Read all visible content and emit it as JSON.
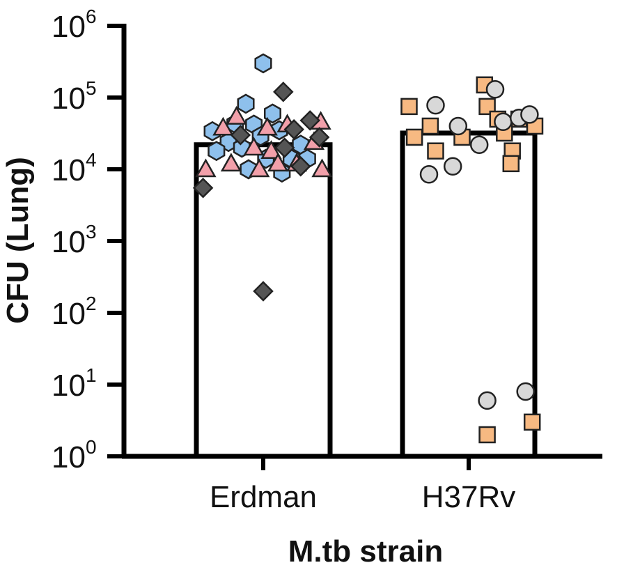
{
  "chart_data": {
    "type": "scatter",
    "title": "",
    "xlabel": "M.tb strain",
    "ylabel": "CFU (Lung)",
    "yscale": "log",
    "ylim": [
      1,
      1000000
    ],
    "y_ticks": [
      {
        "value": 1,
        "base": "10",
        "exp": "0"
      },
      {
        "value": 10,
        "base": "10",
        "exp": "1"
      },
      {
        "value": 100,
        "base": "10",
        "exp": "2"
      },
      {
        "value": 1000,
        "base": "10",
        "exp": "3"
      },
      {
        "value": 10000,
        "base": "10",
        "exp": "4"
      },
      {
        "value": 100000,
        "base": "10",
        "exp": "5"
      },
      {
        "value": 1000000,
        "base": "10",
        "exp": "6"
      }
    ],
    "categories": [
      "Erdman",
      "H37Rv"
    ],
    "bars": [
      {
        "category": "Erdman",
        "value": 22000
      },
      {
        "category": "H37Rv",
        "value": 32000
      }
    ],
    "grid": false,
    "legend": "none",
    "series": [
      {
        "category": "Erdman",
        "marker": "hexagon",
        "color": "#8ec0ec",
        "points": [
          {
            "x": 0.5,
            "y": 300000
          },
          {
            "x": 0.37,
            "y": 82000
          },
          {
            "x": 0.57,
            "y": 60000
          },
          {
            "x": 0.12,
            "y": 34000
          },
          {
            "x": 0.29,
            "y": 43000
          },
          {
            "x": 0.43,
            "y": 42000
          },
          {
            "x": 0.62,
            "y": 35000
          },
          {
            "x": 0.24,
            "y": 24000
          },
          {
            "x": 0.48,
            "y": 29000
          },
          {
            "x": 0.15,
            "y": 18000
          },
          {
            "x": 0.34,
            "y": 20000
          },
          {
            "x": 0.78,
            "y": 22000
          },
          {
            "x": 0.52,
            "y": 14000
          },
          {
            "x": 0.71,
            "y": 14000
          },
          {
            "x": 0.83,
            "y": 14000
          },
          {
            "x": 0.39,
            "y": 10000
          },
          {
            "x": 0.64,
            "y": 9000
          }
        ]
      },
      {
        "category": "Erdman",
        "marker": "triangle",
        "color": "#f2a0aa",
        "points": [
          {
            "x": 0.3,
            "y": 54000
          },
          {
            "x": 0.93,
            "y": 46000
          },
          {
            "x": 0.2,
            "y": 38000
          },
          {
            "x": 0.53,
            "y": 38000
          },
          {
            "x": 0.68,
            "y": 42000
          },
          {
            "x": 0.88,
            "y": 24000
          },
          {
            "x": 0.43,
            "y": 20000
          },
          {
            "x": 0.56,
            "y": 18000
          },
          {
            "x": 0.07,
            "y": 10000
          },
          {
            "x": 0.26,
            "y": 12000
          },
          {
            "x": 0.47,
            "y": 10000
          },
          {
            "x": 0.61,
            "y": 12000
          },
          {
            "x": 0.75,
            "y": 12000
          },
          {
            "x": 0.94,
            "y": 10000
          }
        ]
      },
      {
        "category": "Erdman",
        "marker": "diamond",
        "color": "#555555",
        "points": [
          {
            "x": 0.65,
            "y": 120000
          },
          {
            "x": 0.85,
            "y": 48000
          },
          {
            "x": 0.73,
            "y": 36000
          },
          {
            "x": 0.33,
            "y": 30000
          },
          {
            "x": 0.92,
            "y": 28000
          },
          {
            "x": 0.66,
            "y": 20000
          },
          {
            "x": 0.78,
            "y": 11000
          },
          {
            "x": 0.05,
            "y": 5500
          },
          {
            "x": 0.5,
            "y": 200
          }
        ]
      },
      {
        "category": "H37Rv",
        "marker": "square",
        "color": "#f7b982",
        "points": [
          {
            "x": 0.62,
            "y": 150000
          },
          {
            "x": 0.05,
            "y": 75000
          },
          {
            "x": 0.88,
            "y": 50000
          },
          {
            "x": 0.64,
            "y": 75000
          },
          {
            "x": 0.21,
            "y": 40000
          },
          {
            "x": 0.72,
            "y": 50000
          },
          {
            "x": 0.45,
            "y": 28000
          },
          {
            "x": 0.77,
            "y": 32000
          },
          {
            "x": 0.09,
            "y": 28000
          },
          {
            "x": 1.0,
            "y": 40000
          },
          {
            "x": 0.25,
            "y": 18000
          },
          {
            "x": 0.83,
            "y": 18000
          },
          {
            "x": 0.82,
            "y": 12000
          },
          {
            "x": 0.64,
            "y": 2.0
          },
          {
            "x": 0.98,
            "y": 3.0
          }
        ]
      },
      {
        "category": "H37Rv",
        "marker": "circle",
        "color": "#d8d8d8",
        "points": [
          {
            "x": 0.7,
            "y": 130000
          },
          {
            "x": 0.25,
            "y": 78000
          },
          {
            "x": 0.42,
            "y": 40000
          },
          {
            "x": 0.76,
            "y": 46000
          },
          {
            "x": 0.88,
            "y": 52000
          },
          {
            "x": 0.96,
            "y": 58000
          },
          {
            "x": 0.58,
            "y": 22000
          },
          {
            "x": 0.2,
            "y": 8500
          },
          {
            "x": 0.38,
            "y": 11000
          },
          {
            "x": 0.64,
            "y": 6.0
          },
          {
            "x": 0.93,
            "y": 8.0
          }
        ]
      }
    ]
  }
}
